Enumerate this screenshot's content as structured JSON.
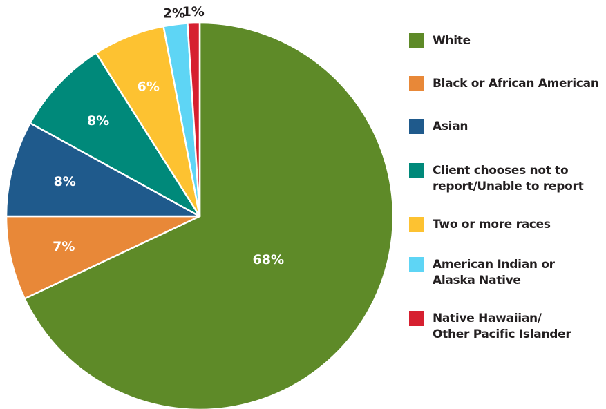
{
  "chart_data": {
    "type": "pie",
    "title": "",
    "slices": [
      {
        "label": "White",
        "value": 68,
        "display": "68%",
        "color": "#5e8a28"
      },
      {
        "label": "Black or African American",
        "value": 7,
        "display": "7%",
        "color": "#e88838"
      },
      {
        "label": "Asian",
        "value": 8,
        "display": "8%",
        "color": "#1f5a8c"
      },
      {
        "label": "Client chooses not to report/Unable to report",
        "value": 8,
        "display": "8%",
        "color": "#00897a"
      },
      {
        "label": "Two or more races",
        "value": 6,
        "display": "6%",
        "color": "#fdc231"
      },
      {
        "label": "American Indian or Alaska Native",
        "value": 2,
        "display": "2%",
        "color": "#5ed5f5"
      },
      {
        "label": "Native Hawaiian/ Other Pacific Islander",
        "value": 1,
        "display": "1%",
        "color": "#d62030"
      }
    ],
    "legend_position": "right"
  },
  "legend": {
    "items": [
      {
        "lines": [
          "White"
        ],
        "color": "#5e8a28"
      },
      {
        "lines": [
          "Black or African American"
        ],
        "color": "#e88838"
      },
      {
        "lines": [
          "Asian"
        ],
        "color": "#1f5a8c"
      },
      {
        "lines": [
          "Client chooses not to",
          "report/Unable to report"
        ],
        "color": "#00897a"
      },
      {
        "lines": [
          "Two or more races"
        ],
        "color": "#fdc231"
      },
      {
        "lines": [
          "American Indian or",
          "Alaska Native"
        ],
        "color": "#5ed5f5"
      },
      {
        "lines": [
          "Native Hawaiian/",
          "Other Pacific Islander"
        ],
        "color": "#d62030"
      }
    ]
  }
}
